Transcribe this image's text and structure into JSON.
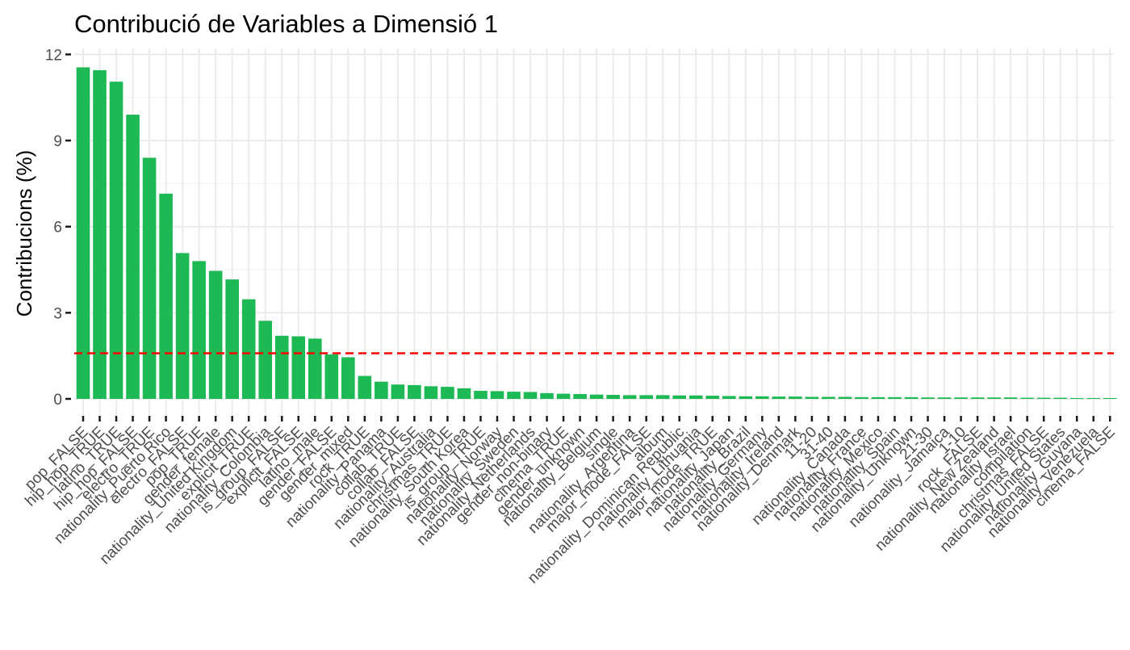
{
  "chart_data": {
    "type": "bar",
    "title": "Contribució de Variables a Dimensió 1",
    "xlabel": "",
    "ylabel": "Contribucions (%)",
    "ylim": [
      0,
      12
    ],
    "yticks": [
      0,
      3,
      6,
      9,
      12
    ],
    "grid": true,
    "legend": "none",
    "bar_color": "#1DB954",
    "reference_line": {
      "value": 1.59,
      "color": "#FF0000",
      "style": "dashed"
    },
    "categories": [
      "pop_FALSE",
      "hip_hop_TRUE",
      "latino_TRUE",
      "hip_hop_FALSE",
      "electro_TRUE",
      "nationality_Puerto Rico",
      "electro_FALSE",
      "pop_TRUE",
      "gender_female",
      "nationality_United Kingdom",
      "explicit_TRUE",
      "nationality_Colombia",
      "is_group_FALSE",
      "explicit_FALSE",
      "latino_male",
      "gender_FALSE",
      "gender_mixed",
      "rock_TRUE",
      "nationality_Panama",
      "collab_TRUE",
      "collab_FALSE",
      "nationality_Australia",
      "christmas_TRUE",
      "nationality_South Korea",
      "is_group_TRUE",
      "nationality_Norway",
      "nationality_Sweden",
      "nationality_Netherlands",
      "gender_non-binary",
      "cinema_TRUE",
      "gender_unknown",
      "nationality_Belgium",
      "single",
      "nationality_Argentina",
      "major_mode_FALSE",
      "album",
      "nationality_Dominican Republic",
      "nationality_Lithuania",
      "major_mode_TRUE",
      "nationality_Japan",
      "nationality_Brazil",
      "nationality_Germany",
      "nationality_Ireland",
      "nationality_Denmark",
      "11-20",
      "31-40",
      "nationality_Canada",
      "nationality_France",
      "nationality_Mexico",
      "nationality_Spain",
      "nationality_Unknown",
      "21-30",
      "nationality_Jamaica",
      "1-10",
      "rock_FALSE",
      "nationality_New Zealand",
      "nationality_Israel",
      "compilation",
      "christmas_FALSE",
      "nationality_United States",
      "nationality_Guyana",
      "nationality_Venezuela",
      "cinema_FALSE"
    ],
    "values": [
      11.55,
      11.45,
      11.05,
      9.9,
      8.4,
      7.15,
      5.08,
      4.8,
      4.46,
      4.16,
      3.47,
      2.72,
      2.2,
      2.18,
      2.1,
      1.55,
      1.45,
      0.8,
      0.6,
      0.5,
      0.48,
      0.44,
      0.42,
      0.37,
      0.28,
      0.27,
      0.25,
      0.24,
      0.2,
      0.18,
      0.17,
      0.15,
      0.14,
      0.13,
      0.13,
      0.13,
      0.12,
      0.12,
      0.11,
      0.1,
      0.09,
      0.09,
      0.08,
      0.08,
      0.07,
      0.07,
      0.07,
      0.06,
      0.06,
      0.06,
      0.06,
      0.05,
      0.05,
      0.05,
      0.05,
      0.05,
      0.05,
      0.04,
      0.04,
      0.04,
      0.03,
      0.03,
      0.03
    ]
  }
}
